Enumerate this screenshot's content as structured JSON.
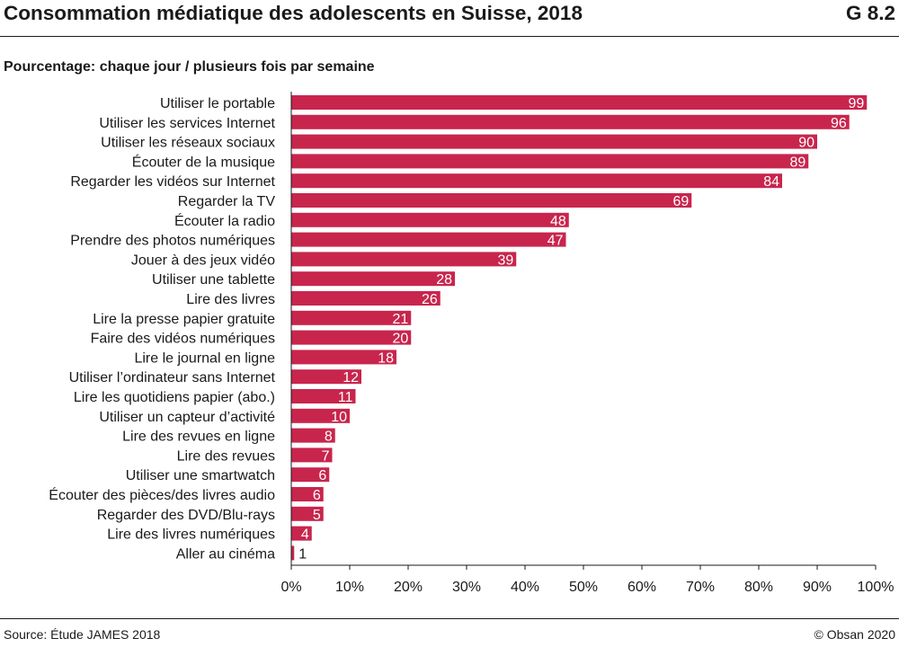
{
  "header": {
    "title": "Consommation médiatique des adolescents en Suisse, 2018",
    "code": "G 8.2"
  },
  "subtitle": "Pourcentage: chaque jour / plusieurs fois par semaine",
  "footer": {
    "source": "Source: Étude JAMES 2018",
    "copyright": "© Obsan 2020"
  },
  "colors": {
    "bar": "#c8254d",
    "text": "#1a1a1a"
  },
  "chart_data": {
    "type": "bar",
    "orientation": "horizontal",
    "title": "Consommation médiatique des adolescents en Suisse, 2018",
    "subtitle": "Pourcentage: chaque jour / plusieurs fois par semaine",
    "xlabel": "",
    "ylabel": "",
    "xlim": [
      0,
      100
    ],
    "ticks": [
      "0%",
      "10%",
      "20%",
      "30%",
      "40%",
      "50%",
      "60%",
      "70%",
      "80%",
      "90%",
      "100%"
    ],
    "categories": [
      "Utiliser le portable",
      "Utiliser les services Internet",
      "Utiliser les réseaux sociaux",
      "Écouter de la musique",
      "Regarder les vidéos sur Internet",
      "Regarder la TV",
      "Écouter la radio",
      "Prendre des photos numériques",
      "Jouer à des jeux vidéo",
      "Utiliser une tablette",
      "Lire des livres",
      "Lire la presse papier gratuite",
      "Faire des vidéos numériques",
      "Lire le journal en ligne",
      "Utiliser l’ordinateur sans Internet",
      "Lire les quotidiens papier (abo.)",
      "Utiliser un capteur d’activité",
      "Lire des revues en ligne",
      "Lire des revues",
      "Utiliser une smartwatch",
      "Écouter des pièces/des livres audio",
      "Regarder des DVD/Blu-rays",
      "Lire des livres numériques",
      "Aller au cinéma"
    ],
    "values": [
      98.5,
      95.5,
      90,
      88.5,
      84,
      68.5,
      47.5,
      47,
      38.5,
      28,
      25.5,
      20.5,
      20.5,
      18,
      12,
      11,
      10,
      7.5,
      7,
      6.5,
      5.5,
      5.5,
      3.5,
      0.5
    ],
    "labels": [
      "99",
      "96",
      "90",
      "89",
      "84",
      "69",
      "48",
      "47",
      "39",
      "28",
      "26",
      "21",
      "20",
      "18",
      "12",
      "11",
      "10",
      "8",
      "7",
      "6",
      "6",
      "5",
      "4",
      "1"
    ],
    "grid": true
  }
}
